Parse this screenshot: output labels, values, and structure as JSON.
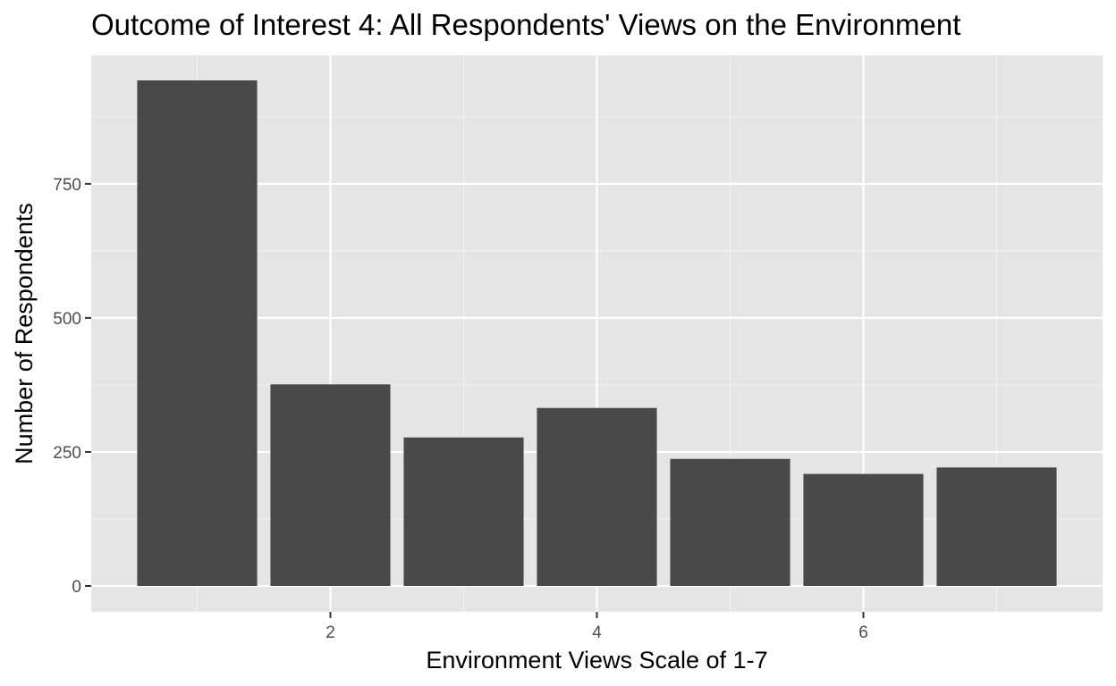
{
  "chart_data": {
    "type": "bar",
    "title": "Outcome of Interest 4: All Respondents' Views on the Environment",
    "xlabel": "Environment Views Scale of 1-7",
    "ylabel": "Number of Respondents",
    "x": [
      1,
      2,
      3,
      4,
      5,
      6,
      7
    ],
    "values": [
      943,
      376,
      277,
      332,
      237,
      209,
      221
    ],
    "xlim": [
      0.5,
      7.5
    ],
    "ylim": [
      0,
      943
    ],
    "xticks": [
      2,
      4,
      6
    ],
    "yticks": [
      0,
      250,
      500,
      750
    ],
    "bar_color": "#494949",
    "panel_color": "#e5e5e5",
    "grid": true
  }
}
